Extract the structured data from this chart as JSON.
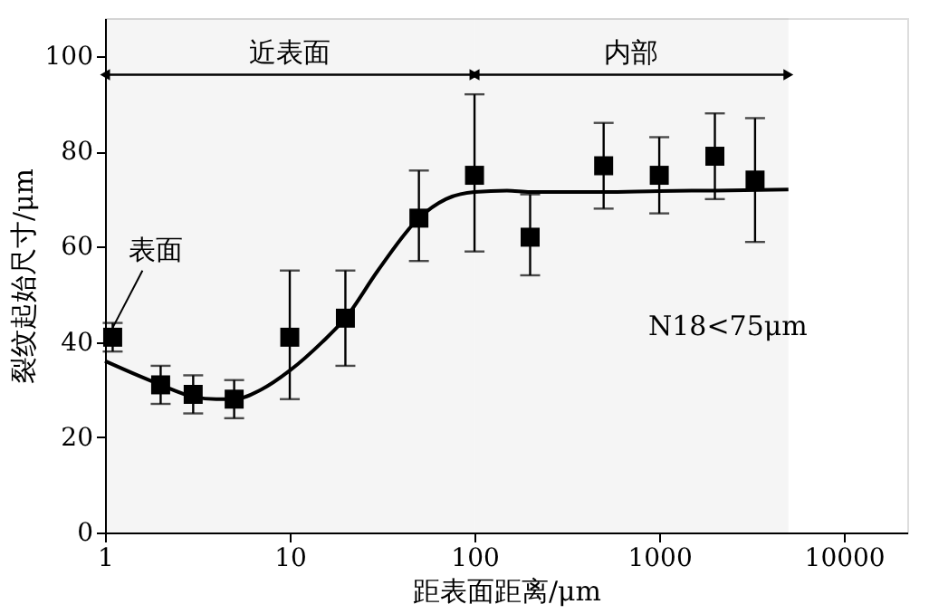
{
  "chart_data": {
    "type": "scatter",
    "xlabel": "距表面距离/μm",
    "ylabel": "裂纹起始尺寸/μm",
    "log": "x",
    "xlim": [
      1,
      22000
    ],
    "xticks": [
      1,
      10,
      100,
      1000,
      10000
    ],
    "ylim": [
      0,
      108
    ],
    "yticks": [
      0,
      20,
      40,
      60,
      80,
      100
    ],
    "grid": false,
    "series": [
      {
        "marker": "square",
        "color": "#000000",
        "x": [
          1.1,
          2,
          3,
          5,
          10,
          20,
          50,
          100,
          200,
          500,
          1000,
          2000,
          3300
        ],
        "values": [
          41,
          31,
          29,
          28,
          41,
          45,
          66,
          75,
          62,
          77,
          75,
          79,
          74
        ],
        "errors": [
          [
            38,
            44
          ],
          [
            27,
            35
          ],
          [
            25,
            33
          ],
          [
            24,
            32
          ],
          [
            28,
            55
          ],
          [
            35,
            55
          ],
          [
            57,
            76
          ],
          [
            59,
            92
          ],
          [
            54,
            71
          ],
          [
            68,
            86
          ],
          [
            67,
            83
          ],
          [
            70,
            88
          ],
          [
            61,
            87
          ]
        ]
      },
      {
        "type": "line",
        "line_style": "solid",
        "color": "#000000",
        "x": [
          1,
          1.5,
          2,
          3,
          4,
          5,
          7,
          10,
          15,
          20,
          30,
          50,
          70,
          100,
          150,
          200,
          500,
          1000,
          2000,
          5000
        ],
        "values": [
          36,
          33,
          31,
          28.5,
          28,
          28,
          30,
          34,
          40,
          45,
          55,
          66,
          70,
          71.5,
          71.8,
          71.5,
          71.5,
          71.7,
          71.8,
          72
        ]
      }
    ],
    "bands": [
      {
        "axis": "x",
        "from": 1,
        "to": 100,
        "label": "近表面"
      },
      {
        "axis": "x",
        "from": 100,
        "to": 5000,
        "label": "内部"
      }
    ],
    "annotations": [
      {
        "text": "表面",
        "x": 1.1,
        "y": 41
      },
      "N18<75μm"
    ]
  }
}
